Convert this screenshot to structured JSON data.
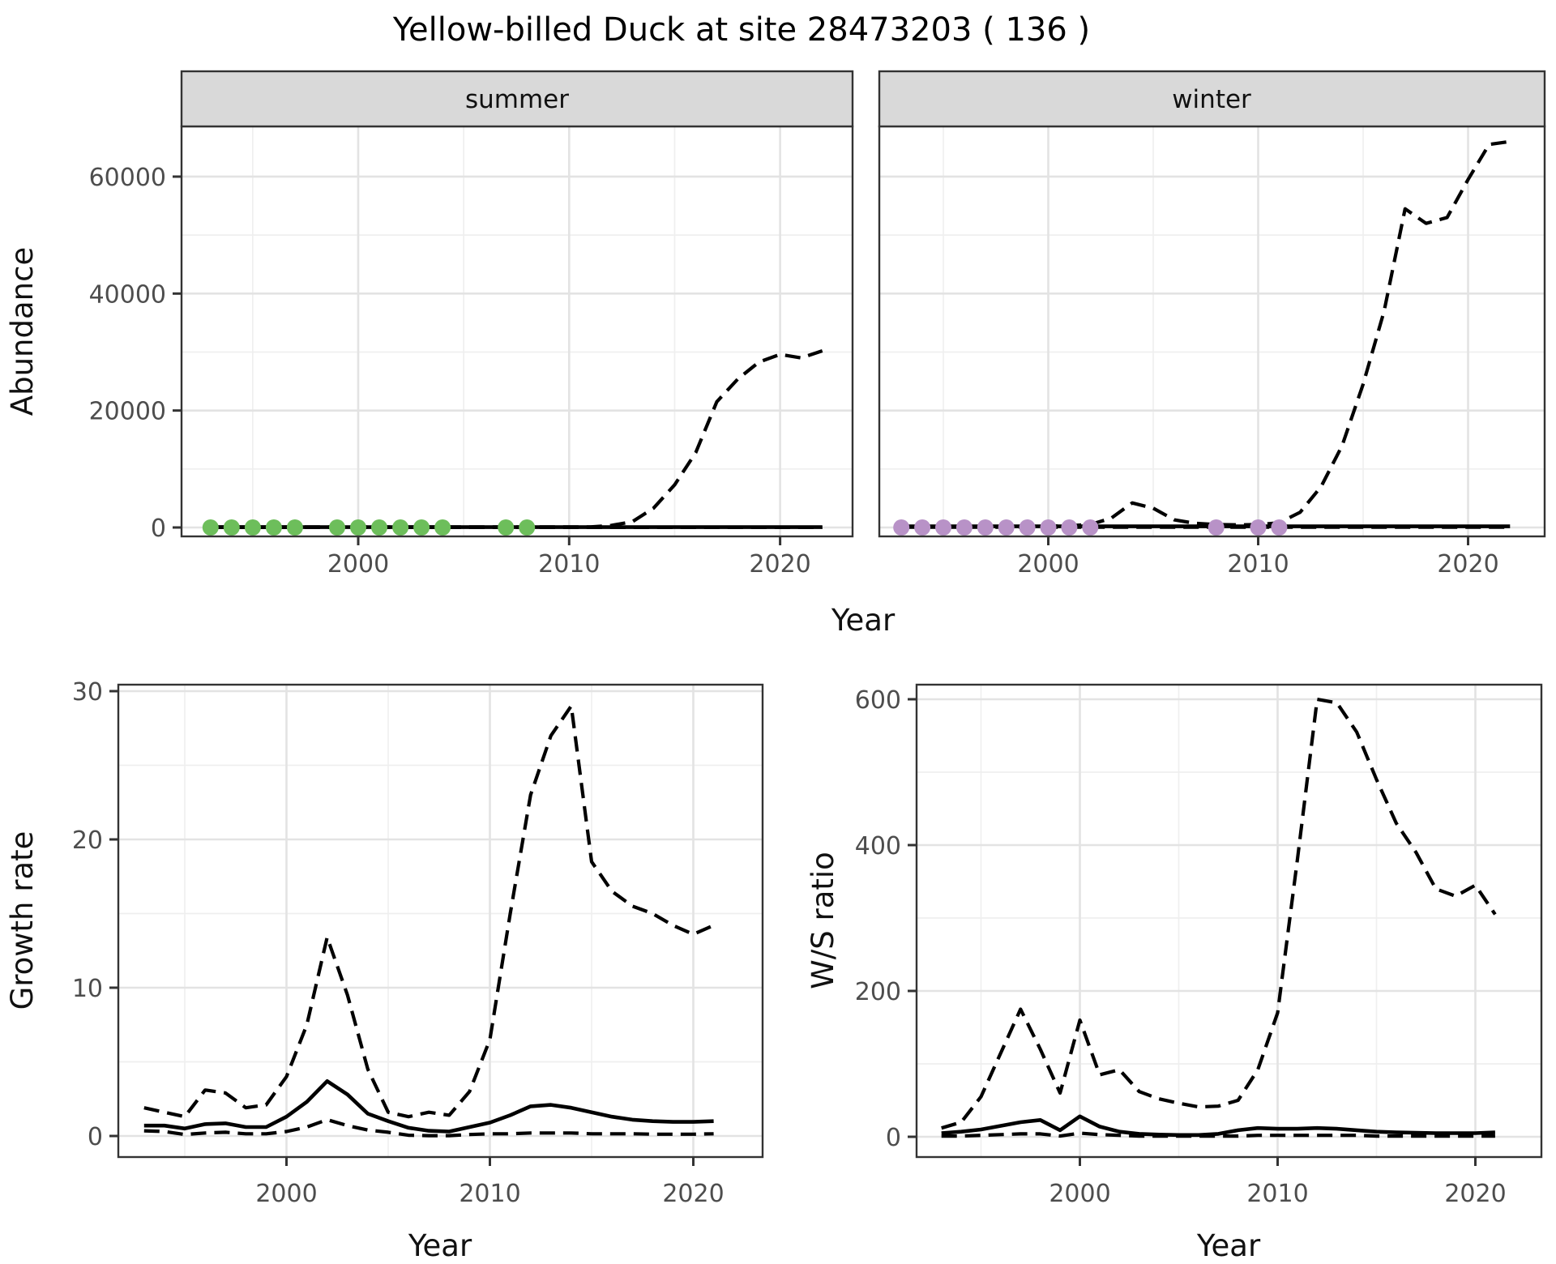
{
  "title": "Yellow-billed Duck at site 28473203 ( 136 )",
  "facets": {
    "summer": "summer",
    "winter": "winter"
  },
  "colors": {
    "summer_dot": "#6dbe5b",
    "winter_dot": "#b892c7",
    "line": "#000000",
    "strip_bg": "#d9d9d9",
    "panel_border": "#333333",
    "grid_major": "#e3e3e3",
    "grid_minor": "#efefef",
    "tick": "#333333"
  },
  "axes": {
    "abundance": {
      "label": "Abundance",
      "ticks": [
        "0",
        "20000",
        "40000",
        "60000"
      ],
      "tick_values": [
        0,
        20000,
        40000,
        60000
      ],
      "minor": [
        10000,
        30000,
        50000
      ]
    },
    "growth": {
      "label": "Growth rate",
      "ticks": [
        "0",
        "10",
        "20",
        "30"
      ],
      "tick_values": [
        0,
        10,
        20,
        30
      ],
      "minor": [
        5,
        15,
        25
      ]
    },
    "ws": {
      "label": "W/S ratio",
      "ticks": [
        "0",
        "200",
        "400",
        "600"
      ],
      "tick_values": [
        0,
        200,
        400,
        600
      ],
      "minor": [
        100,
        300,
        500
      ]
    },
    "year_top": {
      "label": "Year",
      "ticks": [
        "2000",
        "2010",
        "2020"
      ],
      "tick_values": [
        2000,
        2010,
        2020
      ],
      "minor": [
        1995,
        2005,
        2015
      ]
    },
    "year_bl": {
      "label": "Year",
      "ticks": [
        "2000",
        "2010",
        "2020"
      ],
      "tick_values": [
        2000,
        2010,
        2020
      ],
      "minor": [
        1995,
        2005,
        2015
      ]
    },
    "year_br": {
      "label": "Year",
      "ticks": [
        "2000",
        "2010",
        "2020"
      ],
      "tick_values": [
        2000,
        2010,
        2020
      ],
      "minor": [
        1995,
        2005,
        2015
      ]
    }
  },
  "chart_data": [
    {
      "id": "abundance_summer",
      "type": "line",
      "facet": "summer",
      "x_axis": "year_top",
      "y_axis": "abundance",
      "x": [
        1993,
        1994,
        1995,
        1996,
        1997,
        1998,
        1999,
        2000,
        2001,
        2002,
        2003,
        2004,
        2005,
        2006,
        2007,
        2008,
        2009,
        2010,
        2011,
        2012,
        2013,
        2014,
        2015,
        2016,
        2017,
        2018,
        2019,
        2020,
        2021,
        2022
      ],
      "xlim": [
        1991.6,
        2023.4
      ],
      "ylim": [
        -1500,
        68500
      ],
      "series": [
        {
          "name": "median",
          "style": "solid",
          "values": [
            60,
            60,
            60,
            60,
            60,
            60,
            60,
            60,
            60,
            60,
            60,
            60,
            60,
            60,
            60,
            60,
            60,
            60,
            60,
            60,
            60,
            60,
            60,
            60,
            60,
            60,
            60,
            60,
            60,
            60
          ]
        },
        {
          "name": "upper_ci",
          "style": "dashed",
          "values": [
            100,
            100,
            100,
            100,
            100,
            100,
            100,
            100,
            100,
            100,
            100,
            100,
            100,
            100,
            100,
            100,
            100,
            100,
            100,
            350,
            1000,
            3300,
            7300,
            12800,
            21500,
            25400,
            28300,
            29600,
            29000,
            30200
          ]
        },
        {
          "name": "lower_ci",
          "style": "dashed",
          "values": [
            20,
            20,
            20,
            20,
            20,
            20,
            20,
            20,
            20,
            20,
            20,
            20,
            20,
            20,
            20,
            20,
            20,
            20,
            20,
            20,
            20,
            20,
            20,
            20,
            20,
            20,
            20,
            20,
            20,
            20
          ]
        }
      ],
      "points": {
        "name": "observed-zero-counts",
        "value": 0,
        "years": [
          1993,
          1994,
          1995,
          1996,
          1997,
          1999,
          2000,
          2001,
          2002,
          2003,
          2004,
          2007,
          2008
        ]
      }
    },
    {
      "id": "abundance_winter",
      "type": "line",
      "facet": "winter",
      "x_axis": "year_top",
      "y_axis": "abundance",
      "x": [
        1993,
        1994,
        1995,
        1996,
        1997,
        1998,
        1999,
        2000,
        2001,
        2002,
        2003,
        2004,
        2005,
        2006,
        2007,
        2008,
        2009,
        2010,
        2011,
        2012,
        2013,
        2014,
        2015,
        2016,
        2017,
        2018,
        2019,
        2020,
        2021,
        2022
      ],
      "xlim": [
        1992.0,
        2023.6
      ],
      "ylim": [
        -1500,
        68500
      ],
      "series": [
        {
          "name": "median",
          "style": "solid",
          "values": [
            200,
            200,
            200,
            200,
            200,
            200,
            200,
            200,
            200,
            200,
            200,
            200,
            200,
            200,
            200,
            200,
            200,
            200,
            200,
            200,
            200,
            200,
            200,
            200,
            200,
            200,
            200,
            200,
            200,
            200
          ]
        },
        {
          "name": "upper_ci",
          "style": "dashed",
          "values": [
            150,
            150,
            150,
            150,
            150,
            150,
            150,
            200,
            300,
            500,
            1600,
            4200,
            3300,
            1300,
            700,
            500,
            450,
            500,
            800,
            2600,
            7000,
            14000,
            24500,
            37000,
            54500,
            52000,
            53000,
            59500,
            65500,
            66000
          ]
        },
        {
          "name": "lower_ci",
          "style": "dashed",
          "values": [
            50,
            50,
            50,
            50,
            50,
            50,
            50,
            50,
            50,
            50,
            50,
            50,
            50,
            50,
            50,
            50,
            50,
            50,
            50,
            50,
            50,
            50,
            50,
            50,
            50,
            50,
            50,
            50,
            50,
            50
          ]
        }
      ],
      "points": {
        "name": "observed-zero-counts",
        "value": 0,
        "years": [
          1993,
          1994,
          1995,
          1996,
          1997,
          1998,
          1999,
          2000,
          2001,
          2002,
          2008,
          2010,
          2011
        ]
      }
    },
    {
      "id": "growth_rate",
      "type": "line",
      "x_axis": "year_bl",
      "y_axis": "growth",
      "x": [
        1993,
        1994,
        1995,
        1996,
        1997,
        1998,
        1999,
        2000,
        2001,
        2002,
        2003,
        2004,
        2005,
        2006,
        2007,
        2008,
        2009,
        2010,
        2011,
        2012,
        2013,
        2014,
        2015,
        2016,
        2017,
        2018,
        2019,
        2020,
        2021
      ],
      "xlim": [
        1991.7,
        2023.4
      ],
      "ylim": [
        -1.4,
        30.4
      ],
      "series": [
        {
          "name": "median",
          "style": "solid",
          "values": [
            0.7,
            0.7,
            0.5,
            0.8,
            0.85,
            0.6,
            0.6,
            1.3,
            2.3,
            3.7,
            2.8,
            1.5,
            1.0,
            0.55,
            0.35,
            0.3,
            0.6,
            0.9,
            1.4,
            2.0,
            2.1,
            1.9,
            1.6,
            1.3,
            1.1,
            1.0,
            0.95,
            0.95,
            1.0
          ]
        },
        {
          "name": "upper_ci",
          "style": "dashed",
          "values": [
            1.9,
            1.6,
            1.3,
            3.1,
            2.9,
            1.9,
            2.1,
            4.0,
            7.5,
            13.4,
            9.5,
            4.5,
            1.6,
            1.3,
            1.6,
            1.4,
            3.0,
            6.5,
            15.0,
            23.0,
            27.0,
            29.0,
            18.5,
            16.5,
            15.5,
            15.0,
            14.2,
            13.6,
            14.2
          ]
        },
        {
          "name": "lower_ci",
          "style": "dashed",
          "values": [
            0.35,
            0.3,
            0.1,
            0.2,
            0.25,
            0.15,
            0.15,
            0.3,
            0.6,
            1.1,
            0.7,
            0.4,
            0.25,
            0.05,
            0.02,
            0.02,
            0.1,
            0.15,
            0.15,
            0.2,
            0.2,
            0.2,
            0.15,
            0.15,
            0.15,
            0.12,
            0.12,
            0.12,
            0.15
          ]
        }
      ]
    },
    {
      "id": "ws_ratio",
      "type": "line",
      "x_axis": "year_br",
      "y_axis": "ws",
      "x": [
        1993,
        1994,
        1995,
        1996,
        1997,
        1998,
        1999,
        2000,
        2001,
        2002,
        2003,
        2004,
        2005,
        2006,
        2007,
        2008,
        2009,
        2010,
        2011,
        2012,
        2013,
        2014,
        2015,
        2016,
        2017,
        2018,
        2019,
        2020,
        2021
      ],
      "xlim": [
        1991.7,
        2023.3
      ],
      "ylim": [
        -28,
        620
      ],
      "series": [
        {
          "name": "median",
          "style": "solid",
          "values": [
            5,
            7,
            10,
            15,
            20,
            23,
            9,
            28,
            14,
            7,
            4,
            3,
            2.5,
            2.5,
            4,
            9,
            12,
            11,
            11,
            12,
            11,
            9,
            7,
            6,
            5.5,
            5,
            5,
            5,
            6
          ]
        },
        {
          "name": "upper_ci",
          "style": "dashed",
          "values": [
            12,
            20,
            55,
            115,
            175,
            120,
            60,
            160,
            85,
            92,
            62,
            52,
            46,
            41,
            42,
            50,
            92,
            170,
            380,
            600,
            595,
            555,
            490,
            430,
            390,
            340,
            330,
            345,
            305
          ]
        },
        {
          "name": "lower_ci",
          "style": "dashed",
          "values": [
            1,
            1,
            2,
            3,
            4,
            4,
            1,
            5,
            3,
            2,
            1,
            1,
            1,
            1,
            1,
            1,
            2,
            2,
            2,
            2,
            2,
            2,
            1,
            1,
            1,
            1,
            1,
            1,
            1
          ]
        }
      ]
    }
  ]
}
